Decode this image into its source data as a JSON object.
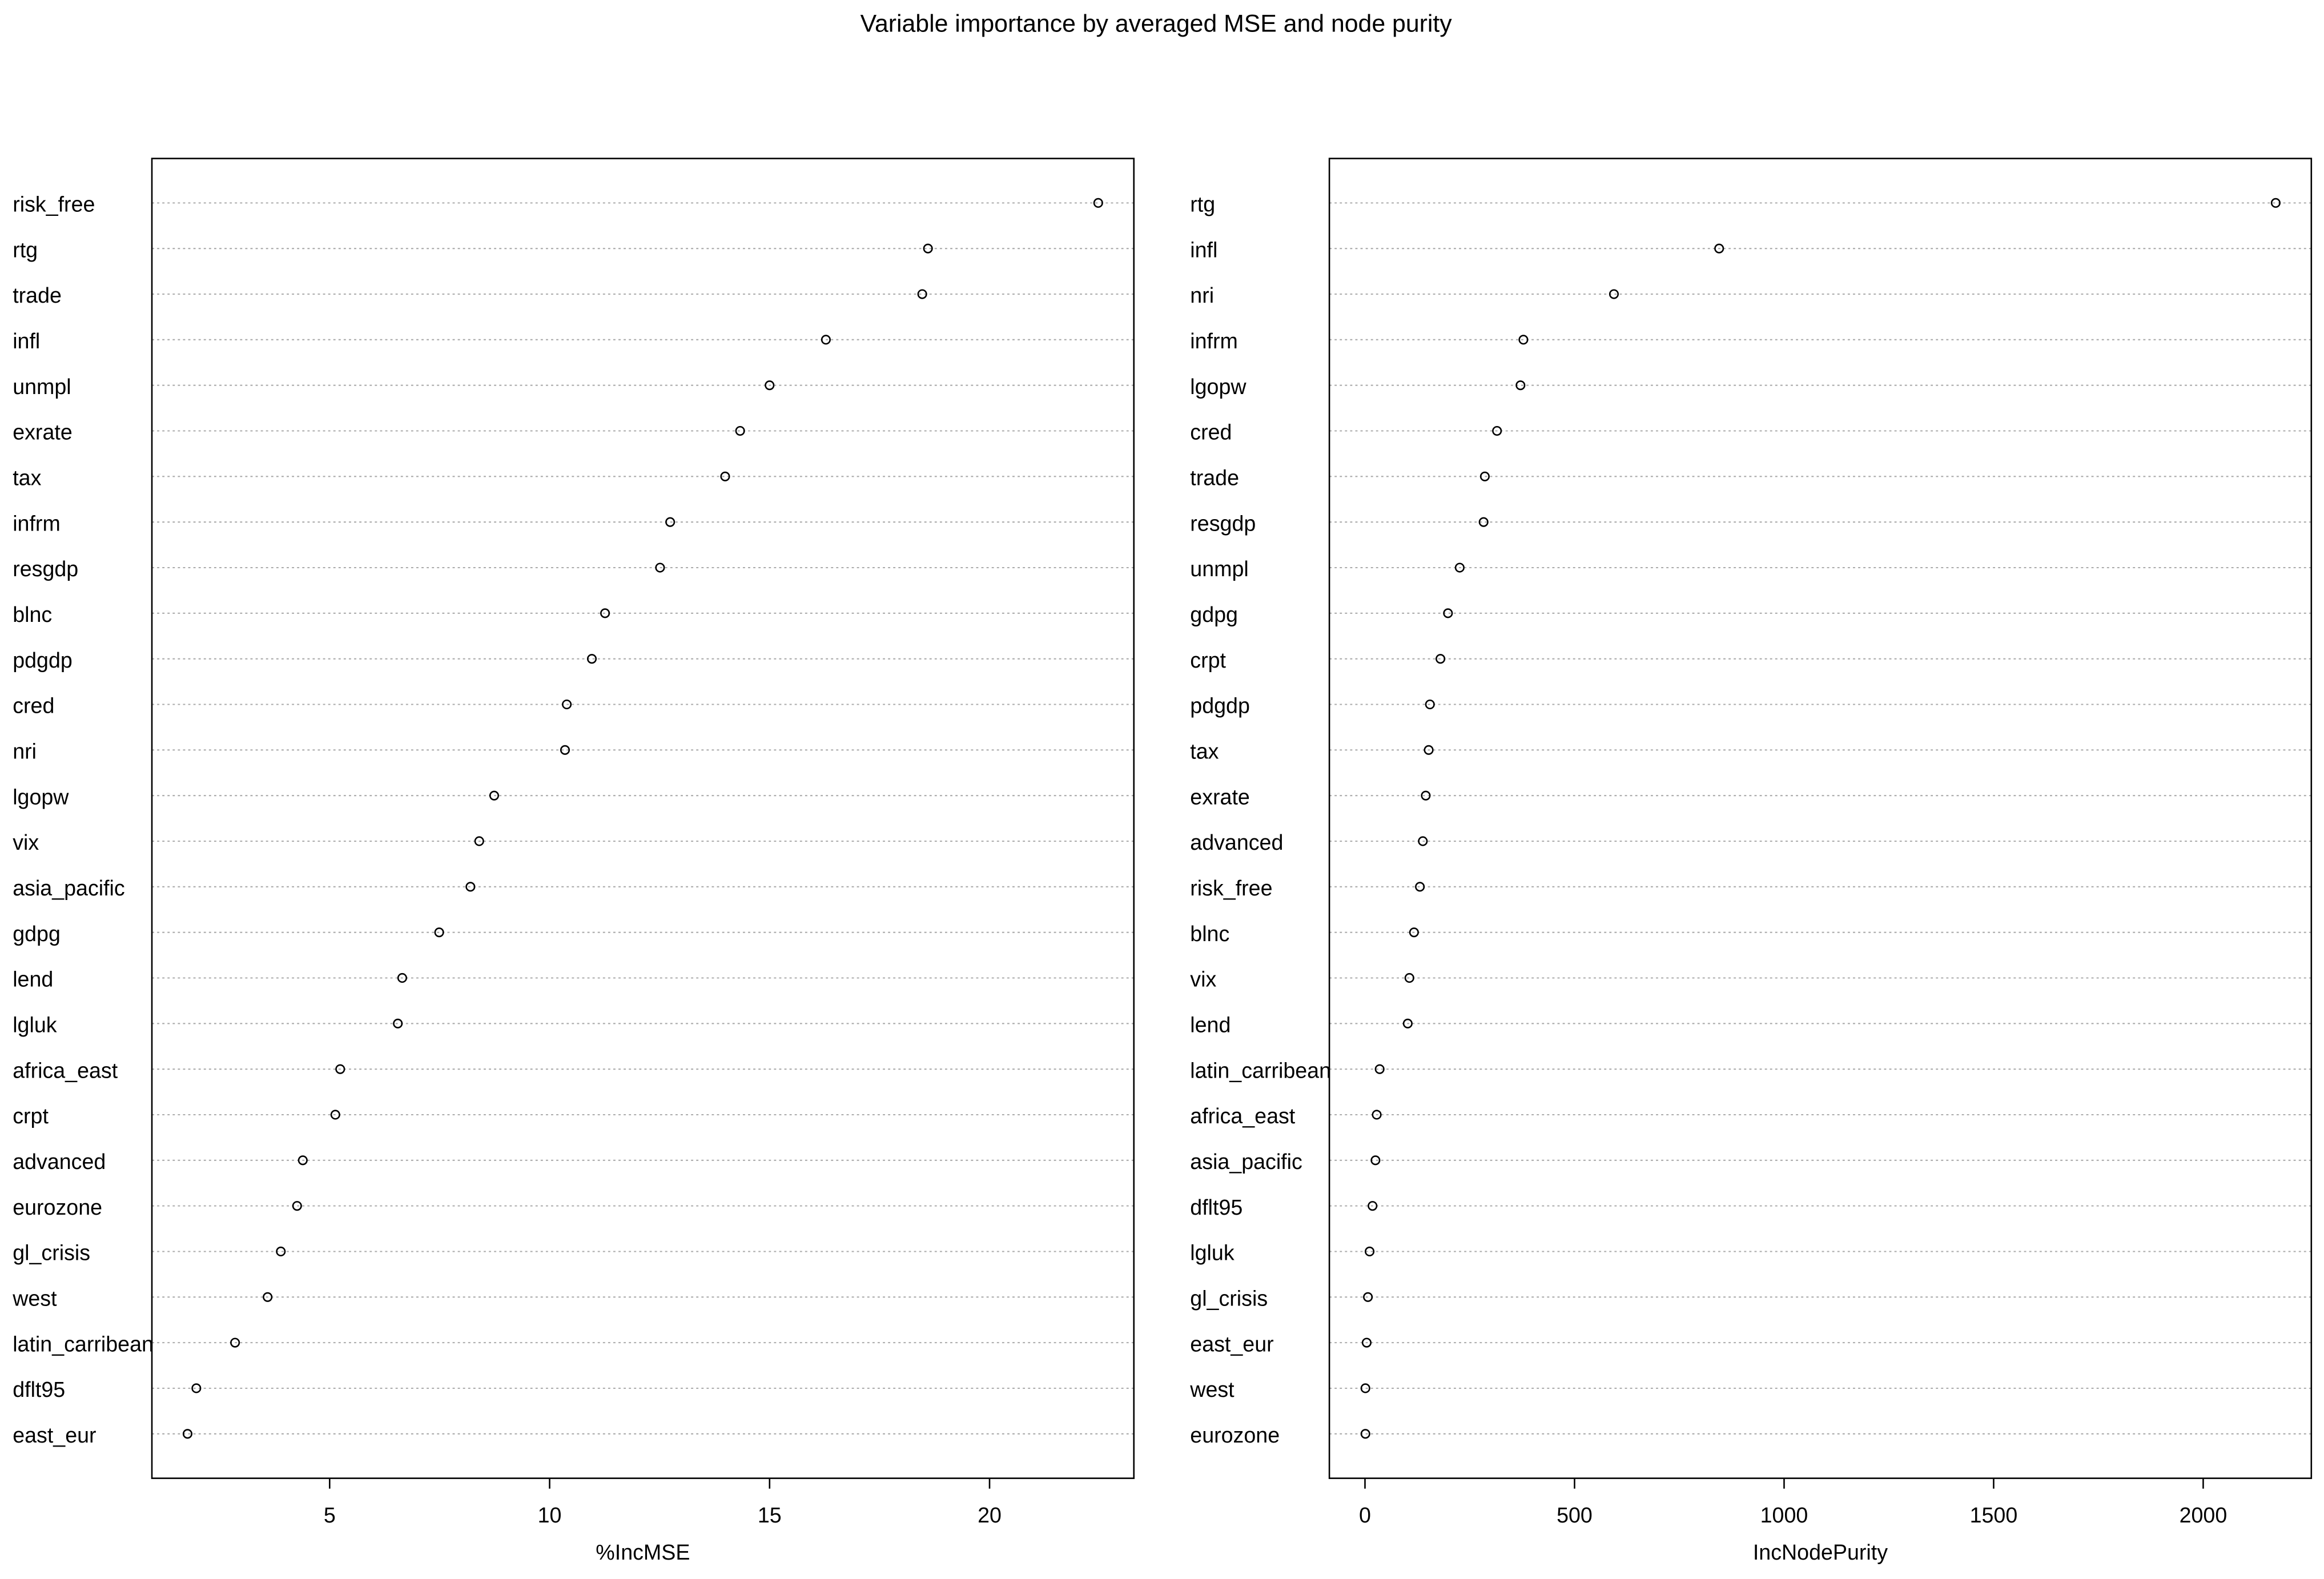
{
  "title": "Variable importance by averaged MSE and node purity",
  "chart_data": [
    {
      "type": "dot",
      "x_label": "%IncMSE",
      "categories": [
        "risk_free",
        "rtg",
        "trade",
        "infl",
        "unmpl",
        "exrate",
        "tax",
        "infrm",
        "resgdp",
        "blnc",
        "pdgdp",
        "cred",
        "nri",
        "lgopw",
        "vix",
        "asia_pacific",
        "gdpg",
        "lend",
        "lgluk",
        "africa_east",
        "crpt",
        "advanced",
        "eurozone",
        "gl_crisis",
        "west",
        "latin_carribean",
        "dflt95",
        "east_eur"
      ],
      "values": [
        22.47,
        18.6,
        18.47,
        16.28,
        15.0,
        14.33,
        13.99,
        12.74,
        12.51,
        11.26,
        10.96,
        10.39,
        10.35,
        8.74,
        8.4,
        8.2,
        7.49,
        6.65,
        6.55,
        5.24,
        5.13,
        4.39,
        4.26,
        3.89,
        3.59,
        2.85,
        1.97,
        1.77
      ],
      "xlim": [
        0.96,
        23.28
      ],
      "xticks": [
        5,
        10,
        15,
        20
      ],
      "grid": true,
      "color": "#000000"
    },
    {
      "type": "dot",
      "x_label": "IncNodePurity",
      "categories": [
        "rtg",
        "infl",
        "nri",
        "infrm",
        "lgopw",
        "cred",
        "trade",
        "resgdp",
        "unmpl",
        "gdpg",
        "crpt",
        "pdgdp",
        "tax",
        "exrate",
        "advanced",
        "risk_free",
        "blnc",
        "vix",
        "lend",
        "latin_carribean",
        "africa_east",
        "asia_pacific",
        "dflt95",
        "lgluk",
        "gl_crisis",
        "east_eur",
        "west",
        "eurozone"
      ],
      "values": [
        2173,
        845,
        594,
        378,
        371,
        315,
        286,
        283,
        226,
        198,
        180,
        155,
        152,
        145,
        138,
        131,
        117,
        106,
        102,
        35,
        28,
        25,
        18,
        11,
        7,
        4,
        1,
        1
      ],
      "xlim": [
        -85,
        2258
      ],
      "xticks": [
        0,
        500,
        1000,
        1500,
        2000
      ],
      "grid": true,
      "color": "#000000"
    }
  ]
}
